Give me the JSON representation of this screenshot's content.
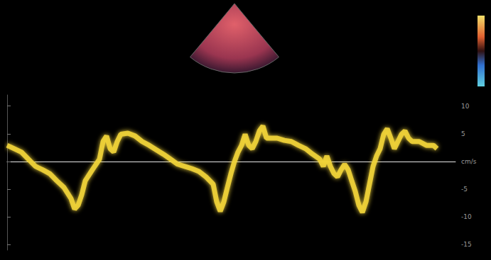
{
  "chart_data": {
    "type": "line",
    "x": [
      0.0,
      0.1,
      0.2,
      0.3,
      0.4,
      0.5,
      0.6,
      0.7,
      0.8,
      0.9,
      0.95,
      1.0,
      1.05,
      1.1,
      1.2,
      1.3,
      1.35,
      1.4,
      1.45,
      1.5,
      1.55,
      1.6,
      1.7,
      1.8,
      1.9,
      2.0,
      2.1,
      2.2,
      2.3,
      2.4,
      2.5,
      2.6,
      2.7,
      2.8,
      2.9,
      2.95,
      3.0,
      3.05,
      3.1,
      3.15,
      3.2,
      3.25,
      3.3,
      3.35,
      3.4,
      3.45,
      3.5,
      3.55,
      3.6,
      3.65,
      3.7,
      3.8,
      3.9,
      4.0,
      4.1,
      4.2,
      4.3,
      4.4,
      4.45,
      4.5,
      4.55,
      4.6,
      4.65,
      4.7,
      4.75,
      4.8,
      4.85,
      4.9,
      4.95,
      5.0,
      5.05,
      5.1,
      5.15,
      5.2,
      5.25,
      5.3,
      5.35,
      5.4,
      5.45,
      5.5,
      5.55,
      5.6,
      5.65,
      5.7,
      5.8,
      5.9,
      6.0,
      6.05
    ],
    "values": [
      2.9,
      2.3,
      1.7,
      0.4,
      -0.9,
      -1.5,
      -2.2,
      -3.5,
      -4.7,
      -6.7,
      -8.6,
      -7.9,
      -6.0,
      -3.5,
      -1.5,
      0.4,
      3.6,
      4.6,
      2.3,
      1.7,
      3.6,
      4.9,
      5.1,
      4.6,
      3.6,
      2.9,
      2.1,
      1.3,
      0.4,
      -0.5,
      -0.9,
      -1.3,
      -1.8,
      -2.8,
      -4.1,
      -7.3,
      -9.0,
      -7.3,
      -4.7,
      -2.2,
      0,
      1.7,
      2.9,
      4.9,
      2.9,
      2.3,
      3.6,
      5.5,
      6.4,
      4.2,
      4.2,
      4.2,
      3.8,
      3.6,
      2.9,
      2.3,
      1.3,
      0.4,
      -0.9,
      1.0,
      -0.9,
      -2.2,
      -2.8,
      -1.5,
      -0.5,
      -1.5,
      -3.5,
      -5.4,
      -7.9,
      -9.2,
      -7.3,
      -4.1,
      -0.9,
      1.0,
      2.3,
      4.9,
      5.9,
      4.2,
      2.3,
      3.6,
      4.9,
      5.5,
      4.2,
      3.6,
      3.6,
      2.9,
      2.9,
      2.3
    ],
    "color": "#f2d43a",
    "xlim": [
      0,
      6.31
    ],
    "ylim": [
      -16,
      12
    ],
    "yticks": [
      10,
      5,
      {
        "value": 0,
        "label": "cm/s"
      },
      -5,
      -10,
      -15
    ],
    "grid": false,
    "tick_labels": "y"
  }
}
